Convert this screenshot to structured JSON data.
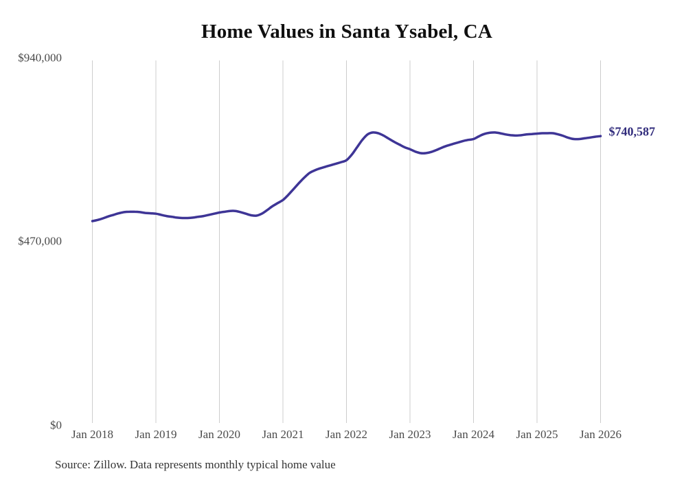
{
  "title": "Home Values in Santa Ysabel, CA",
  "source_note": "Source: Zillow. Data represents monthly typical home value",
  "end_label": "$740,587",
  "colors": {
    "line": "#3e3596",
    "end_label": "#312c7c",
    "axis_text": "#4a4a4a",
    "gridline": "#cccccc",
    "title_text": "#101010",
    "source_text": "#333333",
    "background": "#ffffff"
  },
  "chart_data": {
    "type": "line",
    "title": "Home Values in Santa Ysabel, CA",
    "xlabel": "",
    "ylabel": "",
    "x_tick_labels": [
      "Jan 2018",
      "Jan 2019",
      "Jan 2020",
      "Jan 2021",
      "Jan 2022",
      "Jan 2023",
      "Jan 2024",
      "Jan 2025",
      "Jan 2026"
    ],
    "y_ticks": [
      {
        "label": "$940,000",
        "value": 940000
      },
      {
        "label": "$470,000",
        "value": 470000
      },
      {
        "label": "$0",
        "value": 0
      }
    ],
    "ylim": [
      0,
      940000
    ],
    "grid": "vertical-only",
    "legend": "none",
    "end_annotation": {
      "label": "$740,587",
      "value": 740587
    },
    "series": [
      {
        "name": "Typical home value",
        "unit": "USD",
        "frequency": "monthly",
        "x_start": "Jan 2018",
        "x_end": "Jan 2026",
        "values": [
          523000,
          526000,
          530000,
          535000,
          539000,
          543000,
          546000,
          547000,
          547000,
          546000,
          544000,
          543000,
          542000,
          539000,
          536000,
          534000,
          532000,
          531000,
          531000,
          532000,
          534000,
          536000,
          539000,
          542000,
          545000,
          547000,
          549000,
          549000,
          546000,
          542000,
          538000,
          537000,
          542000,
          551000,
          561000,
          569000,
          577000,
          590000,
          605000,
          620000,
          634000,
          646000,
          653000,
          658000,
          662000,
          666000,
          670000,
          674000,
          679000,
          693000,
          712000,
          731000,
          745000,
          750000,
          748000,
          742000,
          734000,
          726000,
          719000,
          712000,
          707000,
          701000,
          697000,
          697000,
          700000,
          705000,
          711000,
          716000,
          720000,
          724000,
          728000,
          731000,
          733000,
          740000,
          746000,
          749000,
          750000,
          748000,
          745000,
          743000,
          742000,
          743000,
          745000,
          746000,
          747000,
          748000,
          748000,
          748000,
          745000,
          741000,
          736000,
          733000,
          733000,
          735000,
          737000,
          739000,
          740587
        ]
      }
    ]
  }
}
